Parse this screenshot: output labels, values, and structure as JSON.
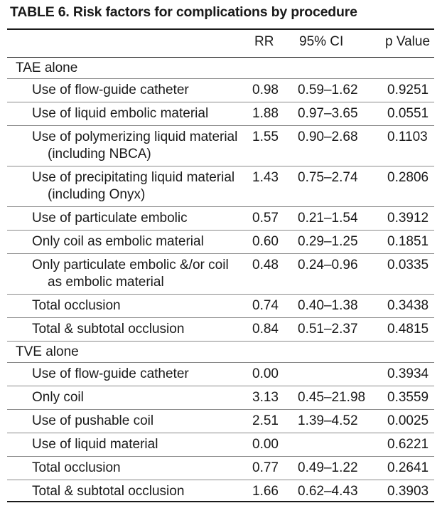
{
  "table": {
    "title": "TABLE 6. Risk factors for complications by procedure",
    "columns": [
      "",
      "RR",
      "95% CI",
      "p Value"
    ],
    "sections": [
      {
        "name": "TAE alone",
        "rows": [
          {
            "factor": [
              "Use of flow-guide catheter"
            ],
            "rr": "0.98",
            "ci": "0.59–1.62",
            "p": "0.9251"
          },
          {
            "factor": [
              "Use of liquid embolic material"
            ],
            "rr": "1.88",
            "ci": "0.97–3.65",
            "p": "0.0551"
          },
          {
            "factor": [
              "Use of polymerizing liquid material",
              "(including NBCA)"
            ],
            "rr": "1.55",
            "ci": "0.90–2.68",
            "p": "0.1103"
          },
          {
            "factor": [
              "Use of precipitating liquid material",
              "(including Onyx)"
            ],
            "rr": "1.43",
            "ci": "0.75–2.74",
            "p": "0.2806"
          },
          {
            "factor": [
              "Use of particulate embolic"
            ],
            "rr": "0.57",
            "ci": "0.21–1.54",
            "p": "0.3912"
          },
          {
            "factor": [
              "Only coil as embolic material"
            ],
            "rr": "0.60",
            "ci": "0.29–1.25",
            "p": "0.1851"
          },
          {
            "factor": [
              "Only particulate embolic &/or coil",
              "as embolic material"
            ],
            "rr": "0.48",
            "ci": "0.24–0.96",
            "p": "0.0335"
          },
          {
            "factor": [
              "Total occlusion"
            ],
            "rr": "0.74",
            "ci": "0.40–1.38",
            "p": "0.3438"
          },
          {
            "factor": [
              "Total & subtotal occlusion"
            ],
            "rr": "0.84",
            "ci": "0.51–2.37",
            "p": "0.4815"
          }
        ]
      },
      {
        "name": "TVE alone",
        "rows": [
          {
            "factor": [
              "Use of flow-guide catheter"
            ],
            "rr": "0.00",
            "ci": "",
            "p": "0.3934"
          },
          {
            "factor": [
              "Only coil"
            ],
            "rr": "3.13",
            "ci": "0.45–21.98",
            "p": "0.3559"
          },
          {
            "factor": [
              "Use of pushable coil"
            ],
            "rr": "2.51",
            "ci": "1.39–4.52",
            "p": "0.0025"
          },
          {
            "factor": [
              "Use of liquid material"
            ],
            "rr": "0.00",
            "ci": "",
            "p": "0.6221"
          },
          {
            "factor": [
              "Total occlusion"
            ],
            "rr": "0.77",
            "ci": "0.49–1.22",
            "p": "0.2641"
          },
          {
            "factor": [
              "Total & subtotal occlusion"
            ],
            "rr": "1.66",
            "ci": "0.62–4.43",
            "p": "0.3903"
          }
        ]
      }
    ]
  }
}
